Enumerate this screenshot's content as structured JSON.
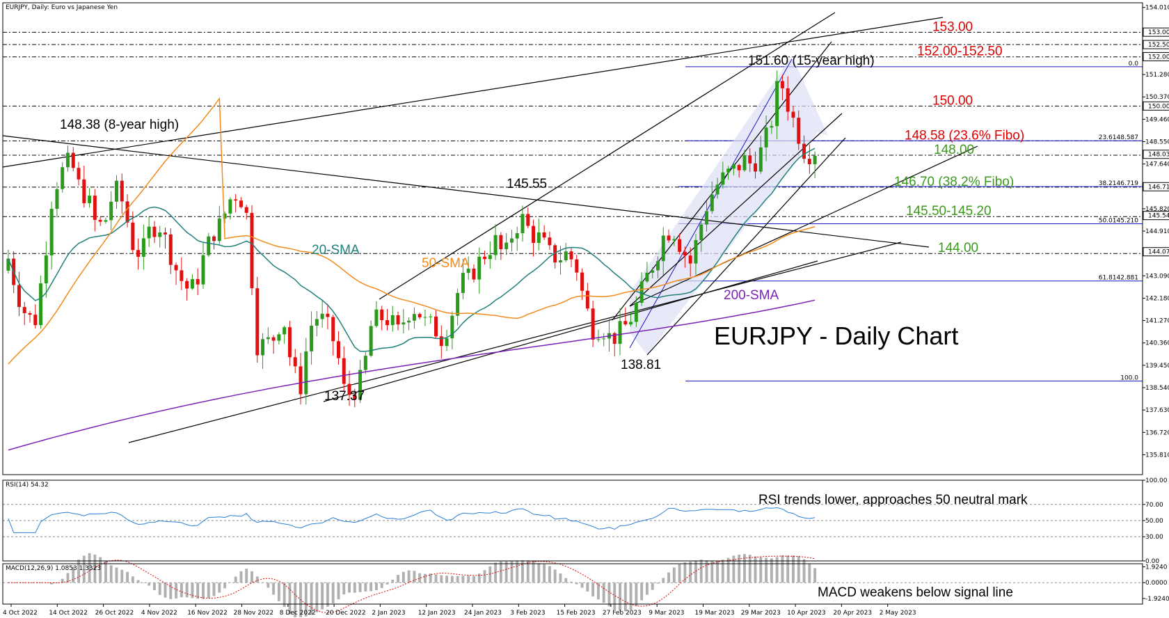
{
  "chart_data": [
    {
      "panel": "main",
      "type": "candlestick",
      "symbol_header": "EURJPY, Daily:  Euro vs Japanese Yen",
      "title": "EURJPY - Daily Chart",
      "ylim": [
        135.0,
        154.2
      ],
      "y_ticks": [
        "154.010",
        "153.006",
        "152.500",
        "152.008",
        "151.280",
        "150.370",
        "150.000",
        "149.460",
        "148.550",
        "148.034",
        "147.640",
        "146.716",
        "145.820",
        "145.544",
        "144.910",
        "144.070",
        "143.090",
        "142.180",
        "141.270",
        "140.360",
        "139.450",
        "138.540",
        "137.630",
        "136.720",
        "135.810"
      ],
      "x_labels": [
        "4 Oct 2022",
        "14 Oct 2022",
        "26 Oct 2022",
        "4 Nov 2022",
        "16 Nov 2022",
        "28 Nov 2022",
        "8 Dec 2022",
        "20 Dec 2022",
        "2 Jan 2023",
        "12 Jan 2023",
        "24 Jan 2023",
        "3 Feb 2023",
        "15 Feb 2023",
        "27 Feb 2023",
        "9 Mar 2023",
        "19 Mar 2023",
        "29 Mar 2023",
        "10 Apr 2023",
        "20 Apr 2023",
        "2 May 2023"
      ],
      "horizontal_levels": [
        {
          "value": 153.0,
          "label": "153.00",
          "color": "#e00000"
        },
        {
          "value": 152.5,
          "label": "",
          "color": "#e00000"
        },
        {
          "value": 152.0,
          "label": "152.00-152.50",
          "color": "#e00000"
        },
        {
          "value": 150.0,
          "label": "150.00",
          "color": "#e00000"
        },
        {
          "value": 148.58,
          "label": "148.58 (23.6% Fibo)",
          "color": "#e00000"
        },
        {
          "value": 148.0,
          "label": "148.00",
          "color": "#3a9a1a"
        },
        {
          "value": 146.7,
          "label": "146.70 (38.2% Fibo)",
          "color": "#3a9a1a"
        },
        {
          "value": 145.5,
          "label": "145.50-145.20",
          "color": "#3a9a1a"
        },
        {
          "value": 144.0,
          "label": "144.00",
          "color": "#3a9a1a"
        }
      ],
      "fibonacci": [
        {
          "label": "0.0",
          "value": 151.6
        },
        {
          "label": "23.6148.587",
          "value": 148.587
        },
        {
          "label": "38.2146.719",
          "value": 146.719
        },
        {
          "label": "50.0145.210",
          "value": 145.21
        },
        {
          "label": "61.8142.881",
          "value": 142.881
        },
        {
          "label": "100.0",
          "value": 138.81
        }
      ],
      "annotations": [
        {
          "text": "148.38 (8-year high)",
          "value": 148.38
        },
        {
          "text": "145.55",
          "value": 145.55
        },
        {
          "text": "137.37",
          "value": 137.37
        },
        {
          "text": "138.81",
          "value": 138.81
        },
        {
          "text": "151.60 (15-year high)",
          "value": 151.6
        }
      ],
      "series": [
        {
          "name": "20-SMA",
          "color": "#1f7f7a"
        },
        {
          "name": "50-SMA",
          "color": "#f28a1c"
        },
        {
          "name": "200-SMA",
          "color": "#7a22b8"
        }
      ],
      "price_tags": [
        "153.006",
        "152.500",
        "152.008",
        "150.000",
        "148.034",
        "146.716",
        "145.544",
        "144.070"
      ]
    },
    {
      "panel": "rsi",
      "type": "line",
      "header": "RSI(14) 54.32",
      "ylim": [
        0,
        100
      ],
      "y_ticks": [
        "100.00",
        "70.00",
        "50.00",
        "30.00",
        "0.00"
      ],
      "caption": "RSI trends lower, approaches 50 neutral mark",
      "color": "#2a7fd6"
    },
    {
      "panel": "macd",
      "type": "bar",
      "header": "MACD(12,26,9) 1.0853 1.3323",
      "y_ticks": [
        "1.9240",
        "0.0000",
        "-1.9240"
      ],
      "caption": "MACD weakens below signal line",
      "signal_color": "#e00000"
    }
  ]
}
